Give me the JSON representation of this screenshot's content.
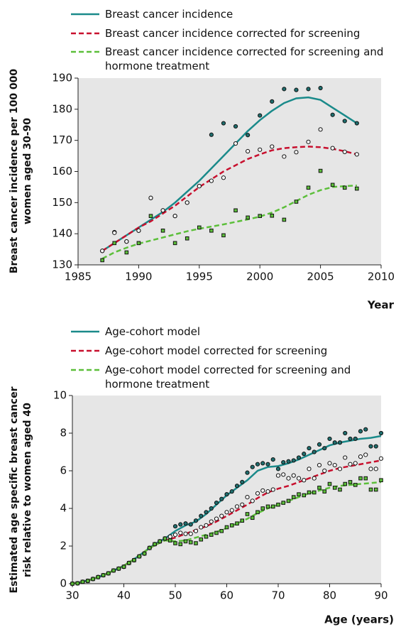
{
  "chart_data": [
    {
      "type": "line",
      "xlabel": "Year",
      "ylabel": "Breast cancer incidence per 100 000 women aged 30-90",
      "xlim": [
        1985,
        2010
      ],
      "xticks": [
        1985,
        1990,
        1995,
        2000,
        2005,
        2010
      ],
      "ylim": [
        130,
        190
      ],
      "yticks": [
        130,
        140,
        150,
        160,
        170,
        180,
        190
      ],
      "background": "#e6e6e6",
      "series": [
        {
          "name": "Breast cancer incidence",
          "type": "line",
          "color": "#1a8a8a",
          "dash": "solid",
          "x": [
            1987,
            1988,
            1989,
            1990,
            1991,
            1992,
            1993,
            1994,
            1995,
            1996,
            1997,
            1998,
            1999,
            2000,
            2001,
            2002,
            2003,
            2004,
            2005,
            2006,
            2007,
            2008
          ],
          "values": [
            134.5,
            137,
            139.5,
            142,
            144.5,
            147,
            150,
            153.5,
            157,
            161,
            165,
            169,
            173,
            176.5,
            179.5,
            182,
            183.5,
            183.8,
            183,
            180.5,
            178,
            175.5
          ]
        },
        {
          "name": "Breast cancer incidence corrected for screening",
          "type": "line",
          "color": "#c8102e",
          "dash": "dashed",
          "x": [
            1987,
            1988,
            1989,
            1990,
            1991,
            1992,
            1993,
            1994,
            1995,
            1996,
            1997,
            1998,
            1999,
            2000,
            2001,
            2002,
            2003,
            2004,
            2005,
            2006,
            2007,
            2008
          ],
          "values": [
            134.5,
            137,
            139.5,
            142,
            144,
            146.5,
            149,
            152,
            155,
            157.5,
            160,
            162,
            164,
            165.5,
            166.8,
            167.5,
            167.8,
            168,
            167.8,
            167.3,
            166.5,
            165.5
          ]
        },
        {
          "name": "Breast cancer incidence corrected for screening and hormone treatment",
          "type": "line",
          "color": "#5cbf3a",
          "dash": "dashed",
          "x": [
            1987,
            1988,
            1989,
            1990,
            1991,
            1992,
            1993,
            1994,
            1995,
            1996,
            1997,
            1998,
            1999,
            2000,
            2001,
            2002,
            2003,
            2004,
            2005,
            2006,
            2007,
            2008
          ],
          "values": [
            132,
            134,
            135.5,
            136.8,
            137.8,
            138.8,
            139.8,
            140.8,
            141.6,
            142.3,
            143,
            143.8,
            144.6,
            145.5,
            146.8,
            148.5,
            150.5,
            152.5,
            154,
            155,
            155.3,
            155.5
          ]
        },
        {
          "type": "scatter",
          "marker": "circle",
          "color": "#1f6f6f",
          "x": [
            1987,
            1988,
            1989,
            1990,
            1991,
            1992,
            1993,
            1994,
            1995,
            1996,
            1997,
            1998,
            1999,
            2000,
            2001,
            2002,
            2003,
            2004,
            2005,
            2006,
            2007,
            2008
          ],
          "values": [
            134.5,
            140.5,
            137.5,
            141,
            151.5,
            147.5,
            145.7,
            150,
            155.3,
            171.8,
            175.5,
            174.5,
            171.7,
            178,
            182.5,
            186.5,
            186.2,
            186.5,
            186.8,
            178.2,
            176.2,
            175.5
          ]
        },
        {
          "type": "scatter",
          "marker": "circle",
          "color": "#ffffff",
          "x": [
            1987,
            1988,
            1989,
            1990,
            1991,
            1992,
            1993,
            1994,
            1995,
            1996,
            1997,
            1998,
            1999,
            2000,
            2001,
            2002,
            2003,
            2004,
            2005,
            2006,
            2007,
            2008
          ],
          "values": [
            134.5,
            140.3,
            137.5,
            141,
            151.5,
            147.5,
            145.7,
            150,
            155.3,
            157,
            158,
            169,
            166.5,
            167,
            168,
            164.8,
            166.2,
            169.5,
            173.5,
            167.5,
            166.3,
            165.5
          ]
        },
        {
          "type": "scatter",
          "marker": "square",
          "color": "#5cbf3a",
          "x": [
            1987,
            1988,
            1989,
            1990,
            1991,
            1992,
            1993,
            1994,
            1995,
            1996,
            1997,
            1998,
            1999,
            2000,
            2001,
            2002,
            2003,
            2004,
            2005,
            2006,
            2007,
            2008
          ],
          "values": [
            131.5,
            137,
            134,
            137,
            145.7,
            141,
            137,
            138.5,
            142,
            141,
            139.5,
            147.5,
            145.2,
            145.7,
            145.8,
            144.5,
            150.3,
            154.8,
            160.2,
            155.7,
            154.8,
            154.5
          ]
        }
      ]
    },
    {
      "type": "line",
      "xlabel": "Age (years)",
      "ylabel": "Estimated age specific breast cancer risk relative to women aged 40",
      "xlim": [
        30,
        90
      ],
      "xticks": [
        30,
        40,
        50,
        60,
        70,
        80,
        90
      ],
      "ylim": [
        0,
        10
      ],
      "yticks": [
        0,
        2,
        4,
        6,
        8,
        10
      ],
      "background": "#e6e6e6",
      "series": [
        {
          "name": "Age-cohort model",
          "type": "line",
          "color": "#1a8a8a",
          "dash": "solid",
          "x": [
            30,
            32,
            34,
            36,
            38,
            40,
            42,
            44,
            46,
            48,
            50,
            52,
            54,
            56,
            58,
            60,
            62,
            64,
            66,
            68,
            70,
            72,
            74,
            76,
            78,
            80,
            82,
            84,
            86,
            88,
            90
          ],
          "values": [
            0,
            0.1,
            0.25,
            0.45,
            0.7,
            0.95,
            1.3,
            1.7,
            2.1,
            2.4,
            2.8,
            3.1,
            3.3,
            3.7,
            4.2,
            4.7,
            5.1,
            5.5,
            6.0,
            6.2,
            6.25,
            6.4,
            6.6,
            6.85,
            7.1,
            7.35,
            7.5,
            7.6,
            7.7,
            7.75,
            7.85
          ]
        },
        {
          "name": "Age-cohort model corrected for screening",
          "type": "line",
          "color": "#c8102e",
          "dash": "dashed",
          "x": [
            30,
            32,
            34,
            36,
            38,
            40,
            42,
            44,
            46,
            48,
            50,
            52,
            54,
            56,
            58,
            60,
            62,
            64,
            66,
            68,
            70,
            72,
            74,
            76,
            78,
            80,
            82,
            84,
            86,
            88,
            90
          ],
          "values": [
            0,
            0.1,
            0.25,
            0.45,
            0.7,
            0.95,
            1.3,
            1.7,
            2.05,
            2.3,
            2.45,
            2.65,
            2.85,
            3.05,
            3.3,
            3.6,
            3.9,
            4.2,
            4.55,
            4.85,
            5.05,
            5.2,
            5.4,
            5.6,
            5.8,
            6.0,
            6.15,
            6.25,
            6.35,
            6.45,
            6.55
          ]
        },
        {
          "name": "Age-cohort model corrected for screening and hormone treatment",
          "type": "line",
          "color": "#5cbf3a",
          "dash": "dashed",
          "x": [
            30,
            32,
            34,
            36,
            38,
            40,
            42,
            44,
            46,
            48,
            50,
            52,
            54,
            56,
            58,
            60,
            62,
            64,
            66,
            68,
            70,
            72,
            74,
            76,
            78,
            80,
            82,
            84,
            86,
            88,
            90
          ],
          "values": [
            0,
            0.1,
            0.25,
            0.45,
            0.7,
            0.95,
            1.3,
            1.7,
            2.05,
            2.3,
            2.25,
            2.3,
            2.45,
            2.6,
            2.75,
            2.95,
            3.2,
            3.45,
            3.75,
            4.0,
            4.2,
            4.4,
            4.6,
            4.8,
            4.95,
            5.1,
            5.2,
            5.25,
            5.3,
            5.35,
            5.4
          ]
        },
        {
          "type": "scatter",
          "marker": "circle",
          "color": "#1f6f6f",
          "x": [
            30,
            31,
            32,
            33,
            34,
            35,
            36,
            37,
            38,
            39,
            40,
            41,
            42,
            43,
            44,
            45,
            46,
            47,
            48,
            49,
            50,
            51,
            52,
            53,
            54,
            55,
            56,
            57,
            58,
            59,
            60,
            61,
            62,
            63,
            64,
            65,
            66,
            67,
            68,
            69,
            70,
            71,
            72,
            73,
            74,
            75,
            76,
            77,
            78,
            79,
            80,
            81,
            82,
            83,
            84,
            85,
            86,
            87,
            88,
            89,
            90
          ],
          "values": [
            0,
            0.02,
            0.1,
            0.15,
            0.25,
            0.35,
            0.45,
            0.55,
            0.7,
            0.8,
            0.9,
            1.1,
            1.25,
            1.45,
            1.6,
            1.9,
            2.1,
            2.25,
            2.4,
            2.5,
            3.05,
            3.15,
            3.2,
            3.15,
            3.35,
            3.6,
            3.8,
            4.0,
            4.3,
            4.5,
            4.75,
            4.9,
            5.2,
            5.4,
            5.9,
            6.2,
            6.35,
            6.4,
            6.35,
            6.6,
            6.1,
            6.45,
            6.5,
            6.55,
            6.7,
            6.9,
            7.2,
            7.0,
            7.4,
            7.2,
            7.7,
            7.5,
            7.5,
            8.0,
            7.7,
            7.7,
            8.1,
            8.2,
            7.3,
            7.3,
            8.0
          ]
        },
        {
          "type": "scatter",
          "marker": "circle",
          "color": "#ffffff",
          "x": [
            30,
            31,
            32,
            33,
            34,
            35,
            36,
            37,
            38,
            39,
            40,
            41,
            42,
            43,
            44,
            45,
            46,
            47,
            48,
            49,
            50,
            51,
            52,
            53,
            54,
            55,
            56,
            57,
            58,
            59,
            60,
            61,
            62,
            63,
            64,
            65,
            66,
            67,
            68,
            69,
            70,
            71,
            72,
            73,
            74,
            75,
            76,
            77,
            78,
            79,
            80,
            81,
            82,
            83,
            84,
            85,
            86,
            87,
            88,
            89,
            90
          ],
          "values": [
            0,
            0.02,
            0.1,
            0.15,
            0.25,
            0.35,
            0.45,
            0.55,
            0.7,
            0.8,
            0.9,
            1.1,
            1.25,
            1.45,
            1.6,
            1.9,
            2.1,
            2.25,
            2.4,
            2.5,
            2.6,
            2.7,
            2.65,
            2.65,
            2.8,
            3.0,
            3.1,
            3.3,
            3.45,
            3.6,
            3.8,
            3.9,
            4.1,
            4.2,
            4.6,
            4.4,
            4.8,
            4.95,
            4.9,
            5.0,
            5.75,
            5.8,
            5.6,
            5.75,
            5.6,
            5.5,
            6.1,
            5.6,
            6.3,
            6.0,
            6.4,
            6.3,
            6.1,
            6.7,
            6.35,
            6.4,
            6.75,
            6.85,
            6.1,
            6.1,
            6.65
          ]
        },
        {
          "type": "scatter",
          "marker": "square",
          "color": "#5cbf3a",
          "x": [
            30,
            31,
            32,
            33,
            34,
            35,
            36,
            37,
            38,
            39,
            40,
            41,
            42,
            43,
            44,
            45,
            46,
            47,
            48,
            49,
            50,
            51,
            52,
            53,
            54,
            55,
            56,
            57,
            58,
            59,
            60,
            61,
            62,
            63,
            64,
            65,
            66,
            67,
            68,
            69,
            70,
            71,
            72,
            73,
            74,
            75,
            76,
            77,
            78,
            79,
            80,
            81,
            82,
            83,
            84,
            85,
            86,
            87,
            88,
            89,
            90
          ],
          "values": [
            0,
            0.02,
            0.1,
            0.15,
            0.25,
            0.35,
            0.45,
            0.55,
            0.7,
            0.8,
            0.9,
            1.1,
            1.25,
            1.45,
            1.6,
            1.9,
            2.1,
            2.25,
            2.4,
            2.3,
            2.15,
            2.1,
            2.25,
            2.2,
            2.15,
            2.35,
            2.5,
            2.6,
            2.7,
            2.8,
            3.0,
            3.1,
            3.2,
            3.35,
            3.7,
            3.5,
            3.8,
            4.0,
            4.1,
            4.1,
            4.2,
            4.3,
            4.4,
            4.6,
            4.75,
            4.7,
            4.85,
            4.85,
            5.1,
            4.9,
            5.3,
            5.1,
            5.0,
            5.3,
            5.4,
            5.25,
            5.6,
            5.6,
            5.0,
            5.0,
            5.5
          ]
        }
      ]
    }
  ]
}
